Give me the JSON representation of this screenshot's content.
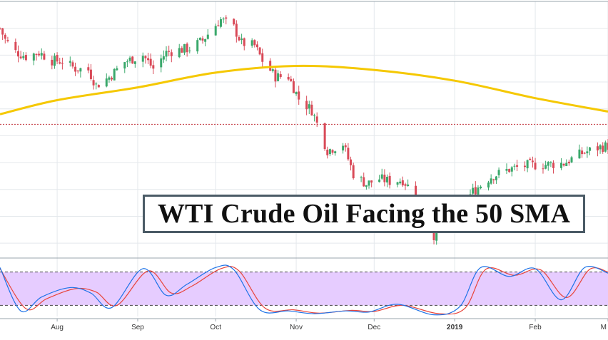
{
  "headline": "WTI Crude Oil Facing the 50 SMA",
  "colors": {
    "up": "#3aa86b",
    "down": "#d94a58",
    "sma": "#f5c800",
    "stoch_fast": "#1e73e8",
    "stoch_slow": "#e8453c",
    "stoch_band": "#e6ccff",
    "price_line": "#c0303a",
    "grid": "#e4e8ec"
  },
  "chart_data": [
    {
      "type": "candlestick",
      "title": "WTI Crude Oil Facing the 50 SMA",
      "xlabel": "",
      "ylabel": "",
      "x_ticks": [
        "Aug",
        "Sep",
        "Oct",
        "Nov",
        "Dec",
        "2019",
        "Feb",
        "M"
      ],
      "x_tick_dates": [
        "2018-08-01",
        "2018-09-01",
        "2018-10-01",
        "2018-11-01",
        "2018-12-01",
        "2019-01-01",
        "2019-02-01",
        "2019-03-01"
      ],
      "x_range": [
        "2018-07-10",
        "2019-03-01"
      ],
      "ylim": [
        40,
        78
      ],
      "grid": true,
      "series": [
        {
          "indicator": "SMA",
          "period": 50,
          "x": [
            "2018-07-10",
            "2018-08-01",
            "2018-09-01",
            "2018-10-01",
            "2018-11-01",
            "2018-12-01",
            "2019-01-01",
            "2019-02-01",
            "2019-03-01"
          ],
          "values": [
            61.2,
            63.3,
            65.2,
            67.4,
            68.4,
            67.8,
            66.2,
            63.6,
            61.6
          ]
        }
      ],
      "price_line": 59.7,
      "waypoints": {
        "x": [
          "2018-07-10",
          "2018-07-12",
          "2018-07-16",
          "2018-07-20",
          "2018-07-25",
          "2018-07-30",
          "2018-08-03",
          "2018-08-08",
          "2018-08-13",
          "2018-08-16",
          "2018-08-21",
          "2018-08-27",
          "2018-09-03",
          "2018-09-07",
          "2018-09-12",
          "2018-09-17",
          "2018-09-21",
          "2018-09-26",
          "2018-10-01",
          "2018-10-03",
          "2018-10-08",
          "2018-10-11",
          "2018-10-16",
          "2018-10-19",
          "2018-10-24",
          "2018-10-29",
          "2018-11-02",
          "2018-11-07",
          "2018-11-13",
          "2018-11-19",
          "2018-11-23",
          "2018-11-28",
          "2018-12-03",
          "2018-12-07",
          "2018-12-12",
          "2018-12-17",
          "2018-12-20",
          "2018-12-24",
          "2018-12-28",
          "2019-01-03",
          "2019-01-08",
          "2019-01-15",
          "2019-01-22",
          "2019-01-29",
          "2019-02-05",
          "2019-02-12",
          "2019-02-19",
          "2019-02-26",
          "2019-03-01"
        ],
        "close": [
          74.0,
          72.3,
          70.5,
          69.8,
          70.4,
          69.2,
          69.1,
          68.0,
          67.8,
          65.5,
          66.7,
          69.0,
          70.0,
          68.0,
          70.4,
          70.8,
          71.0,
          72.2,
          74.5,
          75.3,
          74.1,
          71.8,
          71.4,
          69.2,
          66.8,
          66.8,
          63.5,
          61.8,
          55.8,
          56.8,
          52.3,
          50.8,
          51.6,
          51.2,
          51.4,
          49.2,
          46.4,
          43.2,
          45.1,
          47.1,
          49.7,
          51.9,
          53.0,
          53.6,
          53.7,
          53.9,
          55.4,
          56.3,
          56.5
        ]
      }
    },
    {
      "type": "line",
      "title": "",
      "indicator": "Stochastic",
      "ylim": [
        0,
        100
      ],
      "levels": [
        80,
        20
      ],
      "series": [
        {
          "x": [
            "2018-07-10",
            "2018-07-18",
            "2018-07-26",
            "2018-08-06",
            "2018-08-14",
            "2018-08-22",
            "2018-09-03",
            "2018-09-12",
            "2018-09-20",
            "2018-10-01",
            "2018-10-08",
            "2018-10-18",
            "2018-10-29",
            "2018-11-08",
            "2018-11-20",
            "2018-11-29",
            "2018-12-10",
            "2018-12-24",
            "2019-01-03",
            "2019-01-11",
            "2019-01-22",
            "2019-02-01",
            "2019-02-11",
            "2019-02-20",
            "2019-03-01"
          ],
          "values": [
            88,
            10,
            35,
            52,
            42,
            16,
            86,
            38,
            58,
            88,
            84,
            12,
            10,
            5,
            10,
            8,
            22,
            3,
            18,
            88,
            72,
            86,
            30,
            88,
            78
          ]
        },
        {
          "x": [
            "2018-07-10",
            "2018-07-20",
            "2018-07-28",
            "2018-08-08",
            "2018-08-16",
            "2018-08-24",
            "2018-09-05",
            "2018-09-14",
            "2018-09-22",
            "2018-10-03",
            "2018-10-10",
            "2018-10-20",
            "2018-10-31",
            "2018-11-10",
            "2018-11-22",
            "2018-12-01",
            "2018-12-12",
            "2018-12-26",
            "2019-01-05",
            "2019-01-13",
            "2019-01-24",
            "2019-02-03",
            "2019-02-13",
            "2019-02-22",
            "2019-03-01"
          ],
          "values": [
            86,
            14,
            32,
            50,
            44,
            20,
            82,
            42,
            55,
            86,
            82,
            15,
            12,
            6,
            11,
            9,
            20,
            5,
            15,
            85,
            74,
            84,
            34,
            85,
            80
          ]
        }
      ]
    }
  ]
}
